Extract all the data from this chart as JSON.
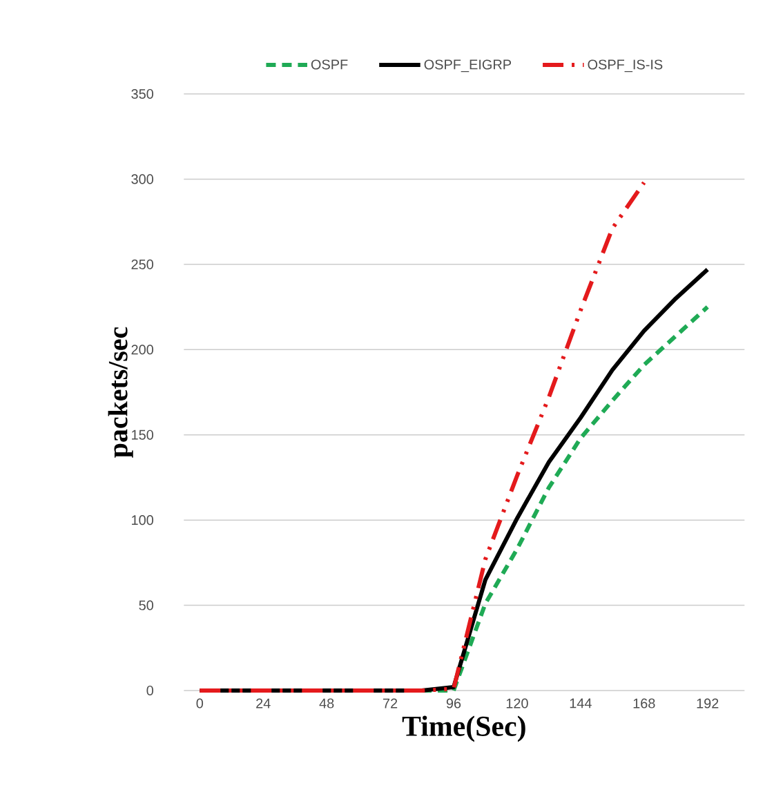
{
  "chart_data": {
    "type": "line",
    "xlabel": "Time(Sec)",
    "ylabel": "packets/sec",
    "x": [
      0,
      12,
      24,
      36,
      48,
      60,
      72,
      84,
      96,
      108,
      120,
      132,
      144,
      156,
      168,
      180,
      192
    ],
    "series": [
      {
        "name": "OSPF",
        "color": "#1faa55",
        "line_style": "dashed",
        "values": [
          null,
          null,
          null,
          null,
          null,
          null,
          0,
          0,
          0,
          51,
          83,
          119,
          148,
          170,
          191,
          208,
          225
        ]
      },
      {
        "name": "OSPF_EIGRP",
        "color": "#000000",
        "line_style": "solid",
        "values": [
          0,
          0,
          0,
          0,
          0,
          0,
          0,
          0,
          2,
          65,
          101,
          134,
          160,
          188,
          211,
          230,
          247
        ]
      },
      {
        "name": "OSPF_IS-IS",
        "color": "#e41a1c",
        "line_style": "dashdot",
        "values": [
          0,
          0,
          0,
          0,
          0,
          0,
          0,
          0,
          1,
          77,
          126,
          172,
          223,
          271,
          298,
          null,
          null
        ]
      }
    ],
    "xlim": [
      -6,
      206
    ],
    "ylim": [
      0,
      350
    ],
    "xticks": [
      0,
      24,
      48,
      72,
      96,
      120,
      144,
      168,
      192
    ],
    "yticks": [
      0,
      50,
      100,
      150,
      200,
      250,
      300,
      350
    ],
    "grid": "y",
    "legend": "top"
  }
}
